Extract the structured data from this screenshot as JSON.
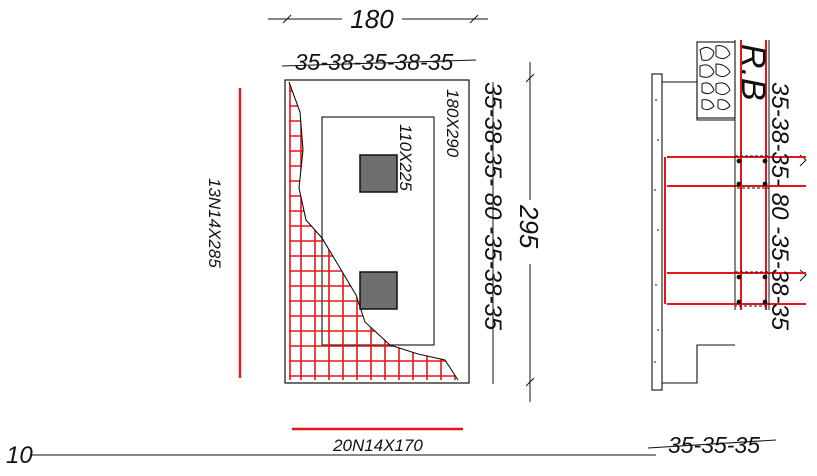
{
  "colors": {
    "line": "#111111",
    "rebar": "#e8141c",
    "column": "#6f6f6f",
    "background": "#ffffff"
  },
  "plan": {
    "overall_width": "180",
    "top_spacing": "35-38-35-38-35",
    "footing_size": "180X290",
    "pedestal_size": "110X225",
    "right_spacing": "35-38-35- 80 -35-38-35",
    "overall_length": "295",
    "long_bars": "13N14X285",
    "short_bars": "20N14X170"
  },
  "section": {
    "label": "R.B",
    "right_spacing": "35-38-35- 80 -35-38-35",
    "bottom_spacing": "35-35-35"
  },
  "left_number": "10"
}
